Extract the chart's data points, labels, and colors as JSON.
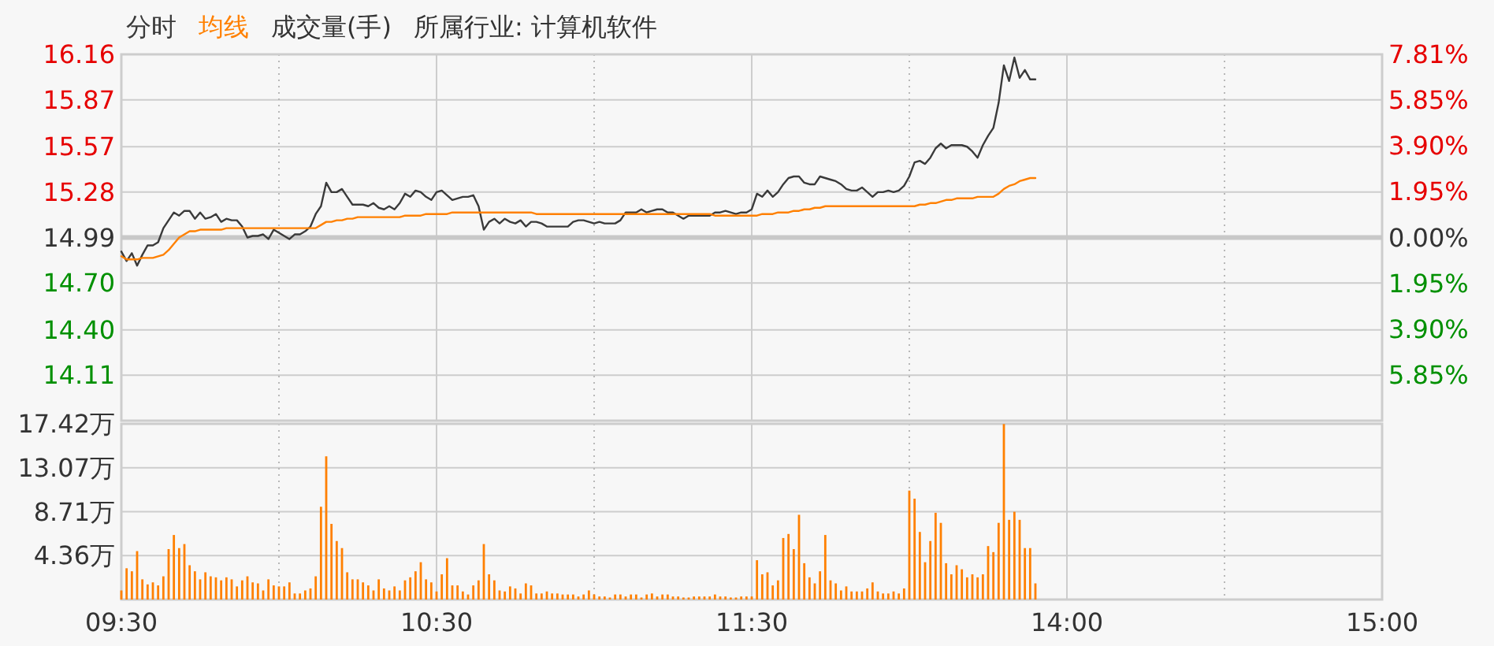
{
  "chart_data": [
    {
      "type": "line",
      "subtitle": "所属行业: 计算机软件",
      "annotations": [
        "成交量(手)"
      ],
      "legend": "top left",
      "grid": true,
      "tick_labels": "y",
      "categories": [
        null,
        null,
        null,
        null,
        null,
        null,
        null,
        null,
        null,
        null,
        null,
        null,
        null,
        null,
        null,
        null,
        null,
        null,
        null,
        null,
        null,
        null,
        null,
        null,
        null,
        null,
        null,
        null,
        null,
        null,
        null,
        null,
        null,
        null,
        null,
        null,
        null,
        null,
        null,
        null,
        null,
        null,
        null,
        null,
        null,
        null,
        null,
        null,
        null,
        null,
        null,
        null,
        null,
        null,
        null,
        null,
        null,
        null,
        null,
        null,
        null,
        null,
        null,
        null,
        null,
        null,
        null,
        null,
        null,
        null,
        null,
        null,
        null,
        null,
        null,
        null,
        null,
        null,
        null,
        null,
        null,
        null,
        null,
        null,
        null,
        null,
        null,
        null,
        null,
        null,
        null,
        null,
        null,
        null,
        null,
        null,
        null,
        null,
        null,
        null,
        null,
        null,
        null,
        null,
        null,
        null,
        null,
        null,
        null,
        null,
        null,
        null,
        null,
        null,
        null,
        null,
        null,
        null,
        null,
        null,
        null,
        null,
        null,
        null,
        null,
        null,
        null,
        null,
        null,
        null,
        null,
        null,
        null,
        null,
        null,
        null,
        null,
        null,
        null,
        null,
        null,
        null,
        null,
        null,
        null,
        null,
        null,
        null,
        null,
        null,
        null,
        null,
        null,
        null,
        null,
        null,
        null,
        null,
        null,
        null,
        null,
        null,
        null,
        null,
        null,
        null,
        null,
        null,
        null,
        null,
        null,
        null,
        null,
        null,
        null,
        null,
        null,
        null,
        null,
        null,
        null,
        null,
        null,
        null,
        null,
        null,
        null,
        null,
        null,
        null,
        null,
        null,
        null,
        null,
        null,
        null,
        null,
        null,
        null,
        null,
        null,
        null,
        null,
        null,
        null,
        null,
        null,
        null,
        null,
        null,
        null,
        null,
        null,
        null,
        null,
        null,
        null,
        null,
        null,
        null,
        null,
        null,
        null,
        null,
        null,
        null,
        null,
        null,
        null,
        null,
        null,
        null,
        null,
        null,
        null,
        null,
        null,
        null,
        null,
        null,
        null
      ],
      "ylim": [
        13.82,
        16.16
      ],
      "yticks": [
        16.16,
        15.87,
        15.57,
        15.28,
        14.99,
        {
          "value": 14.7,
          "label": "14.70"
        },
        {
          "value": 14.4,
          "label": "14.40"
        },
        14.11
      ],
      "y2lim": [
        -7.81,
        7.81
      ],
      "y2ticks": [
        {
          "value": 7.81,
          "label": "7.81%"
        },
        {
          "value": 5.85,
          "label": "5.85%"
        },
        {
          "value": 3.9,
          "label": "3.90%"
        },
        {
          "value": 1.95,
          "label": "1.95%"
        },
        {
          "value": 0,
          "label": "0.00%"
        },
        {
          "value": -1.95,
          "label": "1.95%"
        },
        {
          "value": -3.9,
          "label": "3.90%"
        },
        {
          "value": -5.85,
          "label": "5.85%"
        }
      ],
      "ref_lines": [
        {
          "axis": "y2",
          "value": 0,
          "color": "#c8c8c8"
        }
      ],
      "series": [
        {
          "name": "分时",
          "color": "#3a3a3a",
          "values": [
            14.9,
            14.84,
            14.89,
            14.81,
            14.88,
            14.94,
            14.94,
            14.96,
            15.05,
            15.1,
            15.15,
            15.13,
            15.16,
            15.16,
            15.11,
            15.15,
            15.11,
            15.12,
            15.14,
            15.09,
            15.11,
            15.1,
            15.1,
            15.06,
            14.99,
            15.0,
            15.0,
            15.01,
            14.98,
            15.04,
            15.02,
            15.0,
            14.98,
            15.01,
            15.01,
            15.03,
            15.06,
            15.14,
            15.19,
            15.34,
            15.28,
            15.28,
            15.3,
            15.25,
            15.2,
            15.2,
            15.2,
            15.19,
            15.21,
            15.18,
            15.17,
            15.19,
            15.17,
            15.21,
            15.27,
            15.25,
            15.29,
            15.28,
            15.25,
            15.23,
            15.28,
            15.29,
            15.26,
            15.23,
            15.24,
            15.25,
            15.25,
            15.26,
            15.19,
            15.04,
            15.09,
            15.11,
            15.08,
            15.11,
            15.09,
            15.08,
            15.1,
            15.06,
            15.09,
            15.09,
            15.08,
            15.06,
            15.06,
            15.06,
            15.06,
            15.06,
            15.09,
            15.1,
            15.1,
            15.09,
            15.08,
            15.09,
            15.08,
            15.08,
            15.08,
            15.1,
            15.15,
            15.15,
            15.15,
            15.17,
            15.15,
            15.16,
            15.17,
            15.17,
            15.15,
            15.15,
            15.13,
            15.11,
            15.13,
            15.13,
            15.13,
            15.13,
            15.13,
            15.15,
            15.15,
            15.16,
            15.15,
            15.14,
            15.15,
            15.15,
            15.17,
            15.27,
            15.25,
            15.29,
            15.25,
            15.28,
            15.33,
            15.37,
            15.38,
            15.38,
            15.34,
            15.33,
            15.33,
            15.38,
            15.37,
            15.36,
            15.35,
            15.33,
            15.3,
            15.29,
            15.29,
            15.31,
            15.28,
            15.25,
            15.28,
            15.28,
            15.29,
            15.28,
            15.29,
            15.32,
            15.38,
            15.47,
            15.48,
            15.46,
            15.5,
            15.56,
            15.59,
            15.56,
            15.58,
            15.58,
            15.58,
            15.57,
            15.54,
            15.5,
            15.58,
            15.64,
            15.69,
            15.85,
            16.09,
            15.99,
            16.14,
            16.01,
            16.06,
            16.0,
            16.0,
            null,
            null,
            null,
            null,
            null,
            null,
            null,
            null,
            null,
            null,
            null,
            null,
            null,
            null,
            null,
            null,
            null,
            null,
            null,
            null,
            null,
            null,
            null,
            null,
            null,
            null,
            null,
            null,
            null,
            null,
            null,
            null,
            null,
            null,
            null,
            null,
            null,
            null,
            null,
            null,
            null,
            null,
            null,
            null,
            null,
            null,
            null,
            null,
            null,
            null,
            null,
            null,
            null,
            null,
            null,
            null,
            null,
            null,
            null,
            null,
            null,
            null,
            null,
            null,
            null,
            null
          ]
        },
        {
          "name": "均线",
          "color": "#ff8000",
          "values": [
            14.87,
            14.85,
            14.85,
            14.85,
            14.86,
            14.86,
            14.86,
            14.87,
            14.88,
            14.91,
            14.95,
            14.99,
            15.01,
            15.03,
            15.03,
            15.04,
            15.04,
            15.04,
            15.04,
            15.04,
            15.05,
            15.05,
            15.05,
            15.05,
            15.05,
            15.05,
            15.05,
            15.05,
            15.05,
            15.05,
            15.05,
            15.05,
            15.05,
            15.05,
            15.05,
            15.05,
            15.05,
            15.05,
            15.07,
            15.09,
            15.09,
            15.1,
            15.1,
            15.11,
            15.11,
            15.12,
            15.12,
            15.12,
            15.12,
            15.12,
            15.12,
            15.12,
            15.12,
            15.12,
            15.13,
            15.13,
            15.13,
            15.13,
            15.14,
            15.14,
            15.14,
            15.14,
            15.14,
            15.15,
            15.15,
            15.15,
            15.15,
            15.15,
            15.15,
            15.15,
            15.15,
            15.15,
            15.15,
            15.15,
            15.15,
            15.15,
            15.15,
            15.15,
            15.15,
            15.14,
            15.14,
            15.14,
            15.14,
            15.14,
            15.14,
            15.14,
            15.14,
            15.14,
            15.14,
            15.14,
            15.14,
            15.14,
            15.14,
            15.14,
            15.14,
            15.14,
            15.14,
            15.14,
            15.14,
            15.14,
            15.14,
            15.14,
            15.14,
            15.14,
            15.14,
            15.14,
            15.14,
            15.14,
            15.14,
            15.14,
            15.14,
            15.14,
            15.14,
            15.13,
            15.13,
            15.13,
            15.13,
            15.13,
            15.13,
            15.13,
            15.13,
            15.13,
            15.14,
            15.14,
            15.14,
            15.15,
            15.15,
            15.15,
            15.16,
            15.16,
            15.17,
            15.17,
            15.18,
            15.18,
            15.19,
            15.19,
            15.19,
            15.19,
            15.19,
            15.19,
            15.19,
            15.19,
            15.19,
            15.19,
            15.19,
            15.19,
            15.19,
            15.19,
            15.19,
            15.19,
            15.19,
            15.19,
            15.2,
            15.2,
            15.21,
            15.21,
            15.22,
            15.23,
            15.23,
            15.24,
            15.24,
            15.24,
            15.24,
            15.25,
            15.25,
            15.25,
            15.25,
            15.27,
            15.3,
            15.32,
            15.33,
            15.35,
            15.36,
            15.37,
            15.37,
            null,
            null,
            null,
            null,
            null,
            null,
            null,
            null,
            null,
            null,
            null,
            null,
            null,
            null,
            null,
            null,
            null,
            null,
            null,
            null,
            null,
            null,
            null,
            null,
            null,
            null,
            null,
            null,
            null,
            null,
            null,
            null,
            null,
            null,
            null,
            null,
            null,
            null,
            null,
            null,
            null,
            null,
            null,
            null,
            null,
            null,
            null,
            null,
            null,
            null,
            null,
            null,
            null,
            null,
            null,
            null,
            null,
            null,
            null,
            null,
            null,
            null,
            null,
            null,
            null,
            null
          ]
        }
      ]
    },
    {
      "type": "bar",
      "grid": true,
      "color": "#ff8000",
      "categories": [
        "09:30",
        null,
        null,
        null,
        null,
        null,
        null,
        null,
        null,
        null,
        null,
        null,
        null,
        null,
        null,
        null,
        null,
        null,
        null,
        null,
        null,
        null,
        null,
        null,
        null,
        null,
        null,
        null,
        null,
        null,
        null,
        null,
        null,
        null,
        null,
        null,
        null,
        null,
        null,
        null,
        null,
        null,
        null,
        null,
        null,
        null,
        null,
        null,
        null,
        null,
        null,
        null,
        null,
        null,
        null,
        null,
        null,
        null,
        null,
        null,
        "10:30",
        null,
        null,
        null,
        null,
        null,
        null,
        null,
        null,
        null,
        null,
        null,
        null,
        null,
        null,
        null,
        null,
        null,
        null,
        null,
        null,
        null,
        null,
        null,
        null,
        null,
        null,
        null,
        null,
        null,
        null,
        null,
        null,
        null,
        null,
        null,
        null,
        null,
        null,
        null,
        null,
        null,
        null,
        null,
        null,
        null,
        null,
        null,
        null,
        null,
        null,
        null,
        null,
        null,
        null,
        null,
        null,
        null,
        null,
        null,
        "11:30",
        null,
        null,
        null,
        null,
        null,
        null,
        null,
        null,
        null,
        null,
        null,
        null,
        null,
        null,
        null,
        null,
        null,
        null,
        null,
        null,
        null,
        null,
        null,
        null,
        null,
        null,
        null,
        null,
        null,
        null,
        null,
        null,
        null,
        null,
        null,
        null,
        null,
        null,
        null,
        null,
        null,
        null,
        null,
        null,
        null,
        null,
        null,
        null,
        null,
        null,
        null,
        null,
        null,
        null,
        null,
        null,
        null,
        null,
        null,
        "14:00",
        null,
        null,
        null,
        null,
        null,
        null,
        null,
        null,
        null,
        null,
        null,
        null,
        null,
        null,
        null,
        null,
        null,
        null,
        null,
        null,
        null,
        null,
        null,
        null,
        null,
        null,
        null,
        null,
        null,
        null,
        null,
        null,
        null,
        null,
        null,
        null,
        null,
        null,
        null,
        null,
        null,
        null,
        null,
        null,
        null,
        null,
        null,
        null,
        null,
        null,
        null,
        null,
        null,
        null,
        null,
        null,
        null,
        null,
        null,
        "15:00"
      ],
      "ylim": [
        0,
        17.42
      ],
      "yticks": [
        {
          "value": 4.36,
          "label": "4.36万"
        },
        {
          "value": 8.71,
          "label": "8.71万"
        },
        {
          "value": 13.07,
          "label": "13.07万"
        },
        {
          "value": 17.42,
          "label": "17.42万"
        }
      ],
      "values": [
        0.9,
        3.1,
        2.8,
        4.8,
        2.0,
        1.5,
        1.7,
        1.4,
        2.3,
        5.0,
        6.4,
        5.1,
        5.5,
        3.4,
        2.8,
        2.0,
        2.7,
        2.3,
        2.2,
        1.9,
        2.2,
        2.0,
        1.3,
        1.9,
        2.3,
        1.7,
        1.6,
        0.9,
        2.0,
        1.4,
        1.3,
        1.3,
        1.7,
        0.6,
        0.6,
        0.9,
        1.1,
        2.3,
        9.2,
        14.2,
        7.5,
        5.8,
        5.1,
        2.7,
        2.0,
        2.0,
        1.7,
        1.4,
        0.9,
        2.0,
        1.1,
        0.9,
        1.3,
        0.9,
        1.9,
        2.2,
        2.8,
        3.7,
        2.0,
        1.7,
        0.8,
        2.5,
        4.1,
        1.4,
        1.4,
        0.8,
        0.5,
        1.4,
        1.9,
        5.5,
        2.5,
        1.9,
        0.9,
        0.8,
        1.3,
        1.1,
        0.6,
        1.6,
        1.4,
        0.6,
        0.6,
        0.8,
        0.6,
        0.6,
        0.5,
        0.5,
        0.5,
        0.3,
        0.5,
        0.9,
        0.5,
        0.3,
        0.3,
        0.2,
        0.5,
        0.5,
        0.3,
        0.5,
        0.5,
        0.2,
        0.5,
        0.6,
        0.3,
        0.5,
        0.5,
        0.3,
        0.3,
        0.2,
        0.2,
        0.3,
        0.3,
        0.3,
        0.3,
        0.5,
        0.3,
        0.3,
        0.2,
        0.2,
        0.3,
        0.3,
        0.3,
        3.9,
        2.5,
        2.7,
        1.4,
        1.9,
        6.1,
        6.5,
        5.0,
        8.4,
        3.6,
        2.2,
        1.6,
        2.8,
        6.4,
        1.9,
        1.6,
        0.9,
        1.3,
        0.8,
        0.8,
        0.8,
        1.1,
        1.7,
        0.8,
        0.6,
        0.6,
        0.8,
        0.6,
        1.1,
        10.8,
        10.0,
        6.7,
        3.7,
        5.8,
        8.6,
        7.6,
        3.6,
        2.5,
        3.4,
        3.0,
        2.2,
        2.5,
        2.2,
        2.5,
        5.3,
        4.7,
        7.6,
        17.4,
        7.9,
        8.7,
        7.9,
        5.1,
        5.1,
        1.6,
        null,
        null,
        null,
        null,
        null,
        null,
        null,
        null,
        null,
        null,
        null,
        null,
        null,
        null,
        null,
        null,
        null,
        null,
        null,
        null,
        null,
        null,
        null,
        null,
        null,
        null,
        null,
        null,
        null,
        null,
        null,
        null,
        null,
        null,
        null,
        null,
        null,
        null,
        null,
        null,
        null,
        null,
        null,
        null,
        null,
        null,
        null,
        null,
        null,
        null,
        null,
        null,
        null,
        null,
        null,
        null,
        null,
        null,
        null,
        null,
        null,
        null,
        null,
        null,
        null,
        null
      ]
    }
  ]
}
